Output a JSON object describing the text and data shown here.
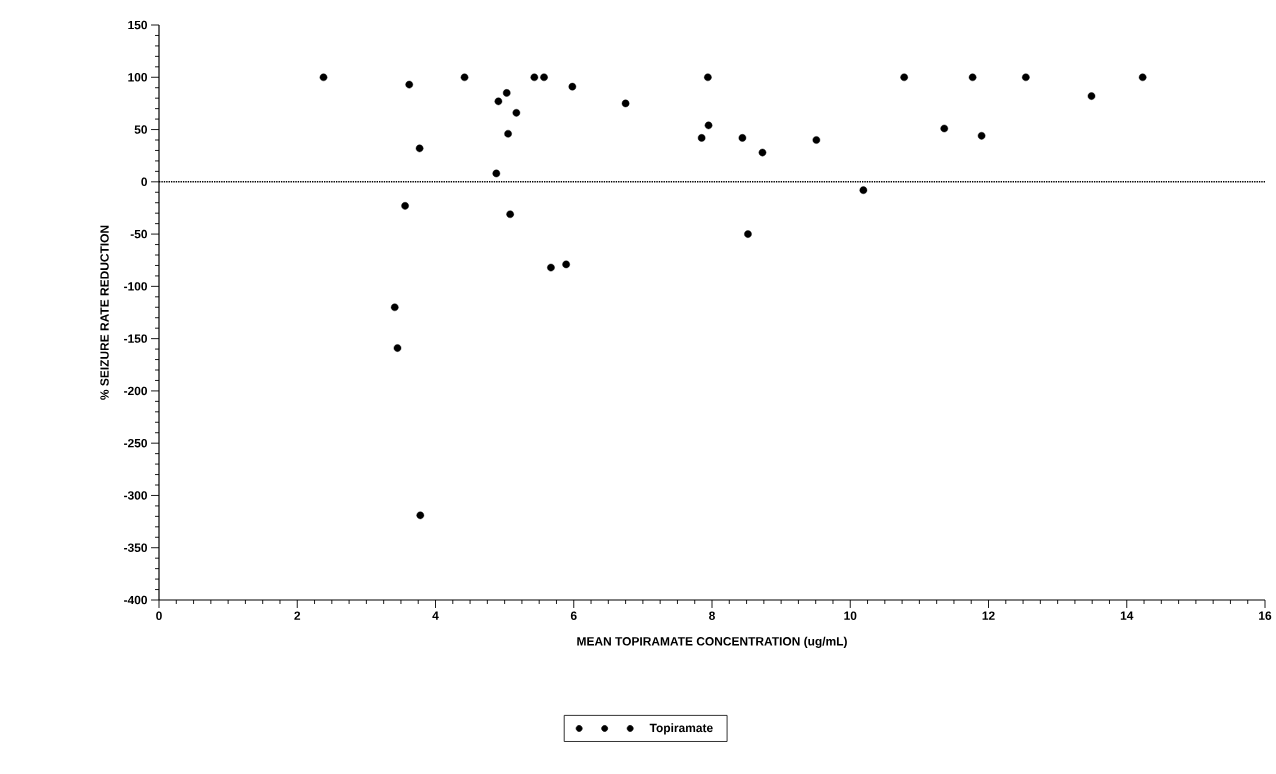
{
  "chart_data": {
    "type": "scatter",
    "xlabel": "MEAN TOPIRAMATE CONCENTRATION (ug/mL)",
    "ylabel": "% SEIZURE RATE REDUCTION",
    "xlim": [
      0,
      16
    ],
    "ylim": [
      -400,
      150
    ],
    "xticks": [
      0,
      2,
      4,
      6,
      8,
      10,
      12,
      14,
      16
    ],
    "yticks": [
      -400,
      -350,
      -300,
      -250,
      -200,
      -150,
      -100,
      -50,
      0,
      50,
      100,
      150
    ],
    "grid": false,
    "legend": "bottom",
    "marker": "circle",
    "ref_lines": [
      {
        "axis": "y",
        "value": 0,
        "line_style": "dotted",
        "color": "#000000"
      }
    ],
    "series": [
      {
        "name": "Topiramate",
        "color": "#000000",
        "x": [
          2.38,
          3.62,
          3.77,
          3.56,
          3.41,
          3.45,
          3.78,
          4.42,
          4.91,
          5.03,
          5.17,
          5.05,
          4.88,
          5.08,
          5.43,
          5.57,
          5.67,
          5.89,
          5.98,
          6.75,
          7.94,
          7.95,
          7.85,
          8.44,
          8.73,
          8.52,
          9.51,
          10.19,
          10.78,
          11.36,
          11.77,
          11.9,
          12.54,
          13.49,
          14.23
        ],
        "values": [
          100,
          93,
          32,
          -23,
          -120,
          -159,
          -319,
          100,
          77,
          85,
          66,
          46,
          8,
          -31,
          100,
          100,
          -82,
          -79,
          91,
          75,
          100,
          54,
          42,
          42,
          28,
          -50,
          40,
          -8,
          100,
          51,
          100,
          44,
          100,
          82,
          100
        ]
      }
    ]
  }
}
